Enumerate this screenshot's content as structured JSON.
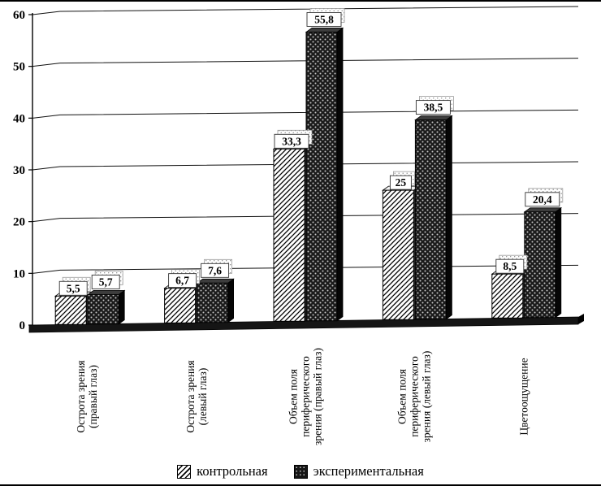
{
  "chart_data": {
    "type": "bar",
    "title": "",
    "effect": "3d",
    "categories": [
      "Острота зрения (правый глаз)",
      "Острота зрения (левый глаз)",
      "Объем поля периферического зрения (правый глаз)",
      "Объем поля периферического зрения (левый глаз)",
      "Цветоощущение"
    ],
    "series": [
      {
        "name": "контрольная",
        "style": "white-diagonal-hatch",
        "values": [
          5.5,
          6.7,
          33.3,
          25,
          8.5
        ],
        "labels": [
          "5,5",
          "6,7",
          "33,3",
          "25",
          "8,5"
        ]
      },
      {
        "name": "экспериментальная",
        "style": "dark-dotted",
        "values": [
          5.7,
          7.6,
          55.8,
          38.5,
          20.4
        ],
        "labels": [
          "5,7",
          "7,6",
          "55,8",
          "38,5",
          "20,4"
        ]
      }
    ],
    "ylim": [
      0,
      60
    ],
    "yticks": [
      0,
      10,
      20,
      30,
      40,
      50,
      60
    ],
    "xlabel": "",
    "ylabel": "",
    "grid": true,
    "legend_position": "bottom"
  },
  "colors": {
    "background": "#ffffff",
    "axis": "#000000",
    "bar_dark": "#1b1b1b",
    "hatch_line": "#000000",
    "floor": "#151515"
  }
}
